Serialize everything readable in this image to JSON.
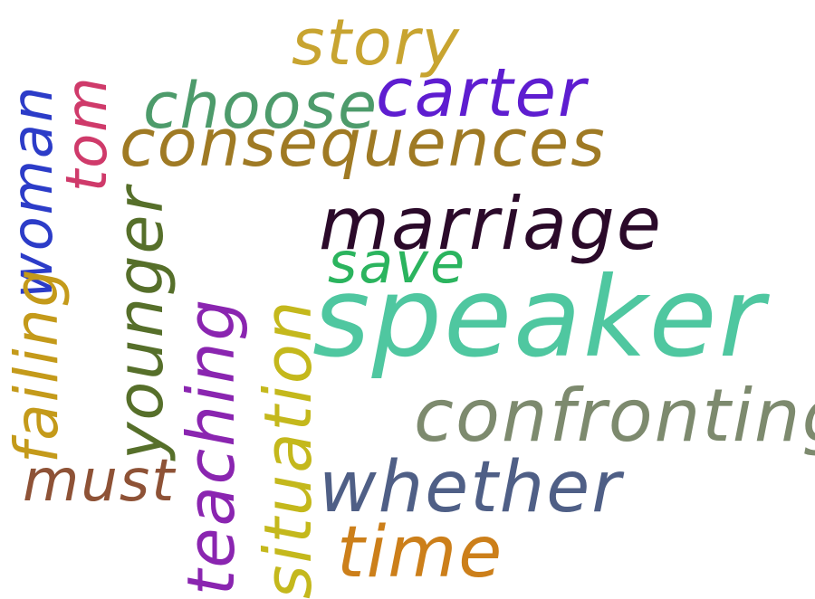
{
  "words": [
    {
      "id": "story",
      "text": "story",
      "color": "#c8a430"
    },
    {
      "id": "choose",
      "text": "choose",
      "color": "#4d9b6b"
    },
    {
      "id": "carter",
      "text": "carter",
      "color": "#5e1dd0"
    },
    {
      "id": "consequences",
      "text": "consequences",
      "color": "#9f7a24"
    },
    {
      "id": "marriage",
      "text": "marriage",
      "color": "#2b0a2a"
    },
    {
      "id": "save",
      "text": "save",
      "color": "#2bb45e"
    },
    {
      "id": "speaker",
      "text": "speaker",
      "color": "#4fc7a0"
    },
    {
      "id": "confronting",
      "text": "confronting",
      "color": "#7d8a6e"
    },
    {
      "id": "must",
      "text": "must",
      "color": "#8e5236"
    },
    {
      "id": "whether",
      "text": "whether",
      "color": "#4f5f86"
    },
    {
      "id": "time",
      "text": "time",
      "color": "#cc7f1a"
    },
    {
      "id": "woman",
      "text": "woman",
      "color": "#2c3cc8"
    },
    {
      "id": "tom",
      "text": "tom",
      "color": "#cf3a6a"
    },
    {
      "id": "failing",
      "text": "failing",
      "color": "#c49a1a"
    },
    {
      "id": "younger",
      "text": "younger",
      "color": "#566f2a"
    },
    {
      "id": "teaching",
      "text": "teaching",
      "color": "#8a25b0"
    },
    {
      "id": "situation",
      "text": "situation",
      "color": "#c4b81c"
    }
  ]
}
